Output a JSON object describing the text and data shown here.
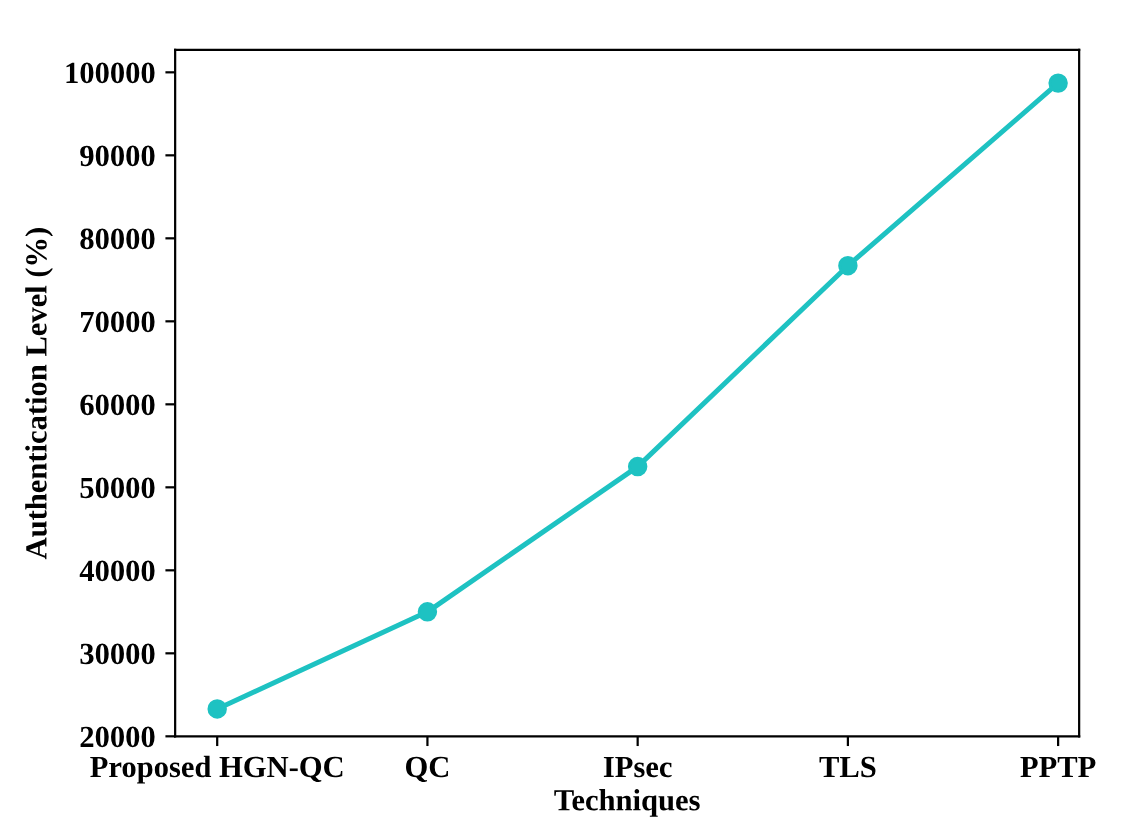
{
  "chart_data": {
    "type": "line",
    "xlabel": "Techniques",
    "ylabel": "Authentication Level (%)",
    "categories": [
      "Proposed HGN-QC",
      "QC",
      "IPsec",
      "TLS",
      "PPTP"
    ],
    "series": [
      {
        "color": "#1ec2c2",
        "values": [
          23300,
          35000,
          52500,
          76700,
          98700
        ]
      }
    ],
    "ylim": [
      20000,
      102700
    ],
    "yticks": [
      20000,
      30000,
      40000,
      50000,
      60000,
      70000,
      80000,
      90000,
      100000
    ],
    "marker": "circle",
    "line_style": "solid",
    "grid": false,
    "legend": false
  }
}
